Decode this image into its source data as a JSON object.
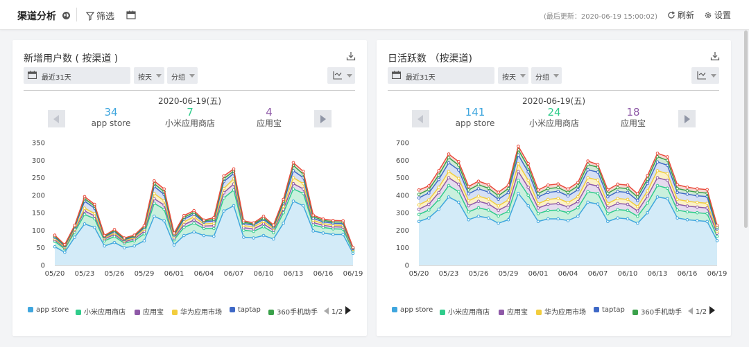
{
  "header": {
    "title": "渠道分析",
    "filter_label": "筛选",
    "updated": "(最后更新：2020-06-19 15:00:02)",
    "refresh_label": "刷新",
    "settings_label": "设置"
  },
  "colors": {
    "app store": "#3fa6de",
    "小米应用商店": "#2fcc8b",
    "应用宝": "#8e59a7",
    "华为应用市场": "#f2cd3d",
    "taptap": "#3e68c6",
    "360手机助手": "#3aa14a",
    "top": "#e94b3c"
  },
  "legend": {
    "items": [
      "app store",
      "小米应用商店",
      "应用宝",
      "华为应用市场",
      "taptap",
      "360手机助手"
    ],
    "page": "1/2"
  },
  "cards": [
    {
      "title": "新增用户数 ( 按渠道 )",
      "date_range": "最近31天",
      "granularity": "按天",
      "group": "分组",
      "selected_date": "2020-06-19(五)",
      "stats": [
        {
          "value": "34",
          "label": "app store"
        },
        {
          "value": "7",
          "label": "小米应用商店"
        },
        {
          "value": "4",
          "label": "应用宝"
        }
      ]
    },
    {
      "title": "日活跃数 （按渠道)",
      "date_range": "最近31天",
      "granularity": "按天",
      "group": "分组",
      "selected_date": "2020-06-19(五)",
      "stats": [
        {
          "value": "141",
          "label": "app store"
        },
        {
          "value": "24",
          "label": "小米应用商店"
        },
        {
          "value": "18",
          "label": "应用宝"
        }
      ]
    }
  ],
  "chart_data": [
    {
      "type": "area",
      "stacked": true,
      "x": [
        "05/20",
        "05/21",
        "05/22",
        "05/23",
        "05/24",
        "05/25",
        "05/26",
        "05/27",
        "05/28",
        "05/29",
        "05/30",
        "05/31",
        "06/01",
        "06/02",
        "06/03",
        "06/04",
        "06/05",
        "06/06",
        "06/07",
        "06/08",
        "06/09",
        "06/10",
        "06/11",
        "06/12",
        "06/13",
        "06/14",
        "06/15",
        "06/16",
        "06/17",
        "06/18",
        "06/19"
      ],
      "xticks": [
        "05/20",
        "05/23",
        "05/26",
        "05/29",
        "06/01",
        "06/04",
        "06/07",
        "06/10",
        "06/13",
        "06/16",
        "06/19"
      ],
      "ylim": [
        0,
        350
      ],
      "yticks": [
        0,
        50,
        100,
        150,
        200,
        250,
        300,
        350
      ],
      "series": [
        {
          "name": "app store",
          "values": [
            53,
            37,
            80,
            118,
            108,
            55,
            65,
            50,
            55,
            70,
            140,
            127,
            58,
            85,
            95,
            85,
            83,
            155,
            170,
            80,
            78,
            85,
            75,
            120,
            183,
            170,
            98,
            92,
            88,
            88,
            34
          ]
        },
        {
          "name": "小米应用商店",
          "values": [
            15,
            10,
            15,
            27,
            25,
            15,
            17,
            13,
            15,
            20,
            37,
            33,
            15,
            23,
            25,
            20,
            22,
            37,
            45,
            20,
            19,
            25,
            18,
            30,
            35,
            35,
            17,
            16,
            16,
            15,
            7
          ]
        },
        {
          "name": "应用宝",
          "values": [
            5,
            3,
            5,
            10,
            8,
            5,
            6,
            4,
            5,
            7,
            13,
            12,
            5,
            8,
            9,
            7,
            8,
            15,
            17,
            7,
            7,
            8,
            7,
            10,
            15,
            13,
            7,
            6,
            6,
            6,
            4
          ]
        },
        {
          "name": "华为应用市场",
          "values": [
            3,
            2,
            3,
            8,
            7,
            3,
            4,
            3,
            4,
            6,
            15,
            12,
            4,
            8,
            9,
            6,
            7,
            12,
            15,
            6,
            6,
            7,
            5,
            8,
            17,
            15,
            6,
            5,
            5,
            5,
            1
          ]
        },
        {
          "name": "taptap",
          "values": [
            4,
            3,
            5,
            20,
            15,
            3,
            4,
            3,
            3,
            4,
            20,
            18,
            4,
            8,
            8,
            5,
            7,
            20,
            15,
            6,
            5,
            6,
            4,
            10,
            20,
            17,
            6,
            5,
            5,
            5,
            2
          ]
        },
        {
          "name": "360手机助手",
          "values": [
            3,
            2,
            3,
            7,
            6,
            2,
            3,
            2,
            2,
            3,
            8,
            8,
            3,
            5,
            5,
            3,
            4,
            8,
            7,
            4,
            3,
            4,
            3,
            5,
            15,
            10,
            5,
            4,
            4,
            4,
            2
          ]
        },
        {
          "name": "",
          "values": [
            3,
            2,
            3,
            6,
            5,
            2,
            3,
            3,
            2,
            3,
            8,
            8,
            3,
            5,
            5,
            3,
            5,
            8,
            6,
            4,
            3,
            5,
            3,
            5,
            8,
            8,
            4,
            4,
            4,
            4,
            1
          ]
        }
      ]
    },
    {
      "type": "area",
      "stacked": true,
      "x": [
        "05/20",
        "05/21",
        "05/22",
        "05/23",
        "05/24",
        "05/25",
        "05/26",
        "05/27",
        "05/28",
        "05/29",
        "05/30",
        "05/31",
        "06/01",
        "06/02",
        "06/03",
        "06/04",
        "06/05",
        "06/06",
        "06/07",
        "06/08",
        "06/09",
        "06/10",
        "06/11",
        "06/12",
        "06/13",
        "06/14",
        "06/15",
        "06/16",
        "06/17",
        "06/18",
        "06/19"
      ],
      "xticks": [
        "05/20",
        "05/23",
        "05/26",
        "05/29",
        "06/01",
        "06/04",
        "06/07",
        "06/10",
        "06/13",
        "06/16",
        "06/19"
      ],
      "ylim": [
        0,
        700
      ],
      "yticks": [
        0,
        100,
        200,
        300,
        400,
        500,
        600,
        700
      ],
      "series": [
        {
          "name": "app store",
          "values": [
            250,
            270,
            320,
            390,
            360,
            260,
            280,
            270,
            240,
            260,
            410,
            340,
            250,
            265,
            265,
            255,
            280,
            360,
            350,
            250,
            270,
            265,
            240,
            300,
            390,
            380,
            270,
            260,
            255,
            250,
            141
          ]
        },
        {
          "name": "小米应用商店",
          "values": [
            40,
            45,
            55,
            65,
            60,
            45,
            48,
            45,
            42,
            48,
            75,
            60,
            45,
            48,
            50,
            45,
            48,
            60,
            60,
            45,
            48,
            48,
            40,
            55,
            65,
            60,
            45,
            45,
            45,
            45,
            24
          ]
        },
        {
          "name": "应用宝",
          "values": [
            30,
            33,
            40,
            45,
            43,
            35,
            37,
            35,
            32,
            35,
            50,
            45,
            32,
            35,
            37,
            33,
            35,
            45,
            42,
            33,
            35,
            35,
            30,
            40,
            45,
            45,
            33,
            33,
            32,
            32,
            18
          ]
        },
        {
          "name": "华为应用市场",
          "values": [
            25,
            25,
            30,
            35,
            33,
            28,
            30,
            28,
            25,
            30,
            45,
            40,
            25,
            28,
            30,
            25,
            28,
            35,
            35,
            25,
            28,
            28,
            25,
            30,
            40,
            38,
            28,
            28,
            27,
            27,
            10
          ]
        },
        {
          "name": "taptap",
          "values": [
            40,
            40,
            45,
            50,
            48,
            40,
            42,
            40,
            38,
            42,
            50,
            48,
            38,
            40,
            40,
            38,
            40,
            45,
            45,
            38,
            40,
            40,
            35,
            42,
            50,
            48,
            40,
            40,
            38,
            38,
            15
          ]
        },
        {
          "name": "360手机助手",
          "values": [
            20,
            20,
            25,
            30,
            28,
            22,
            23,
            22,
            20,
            23,
            30,
            28,
            20,
            22,
            22,
            20,
            22,
            30,
            28,
            20,
            22,
            22,
            20,
            25,
            30,
            28,
            22,
            20,
            20,
            20,
            10
          ]
        },
        {
          "name": "",
          "values": [
            25,
            20,
            25,
            20,
            20,
            20,
            20,
            20,
            20,
            20,
            20,
            20,
            20,
            20,
            20,
            20,
            20,
            20,
            15,
            20,
            20,
            20,
            18,
            20,
            20,
            20,
            22,
            20,
            20,
            20,
            10
          ]
        }
      ]
    }
  ]
}
